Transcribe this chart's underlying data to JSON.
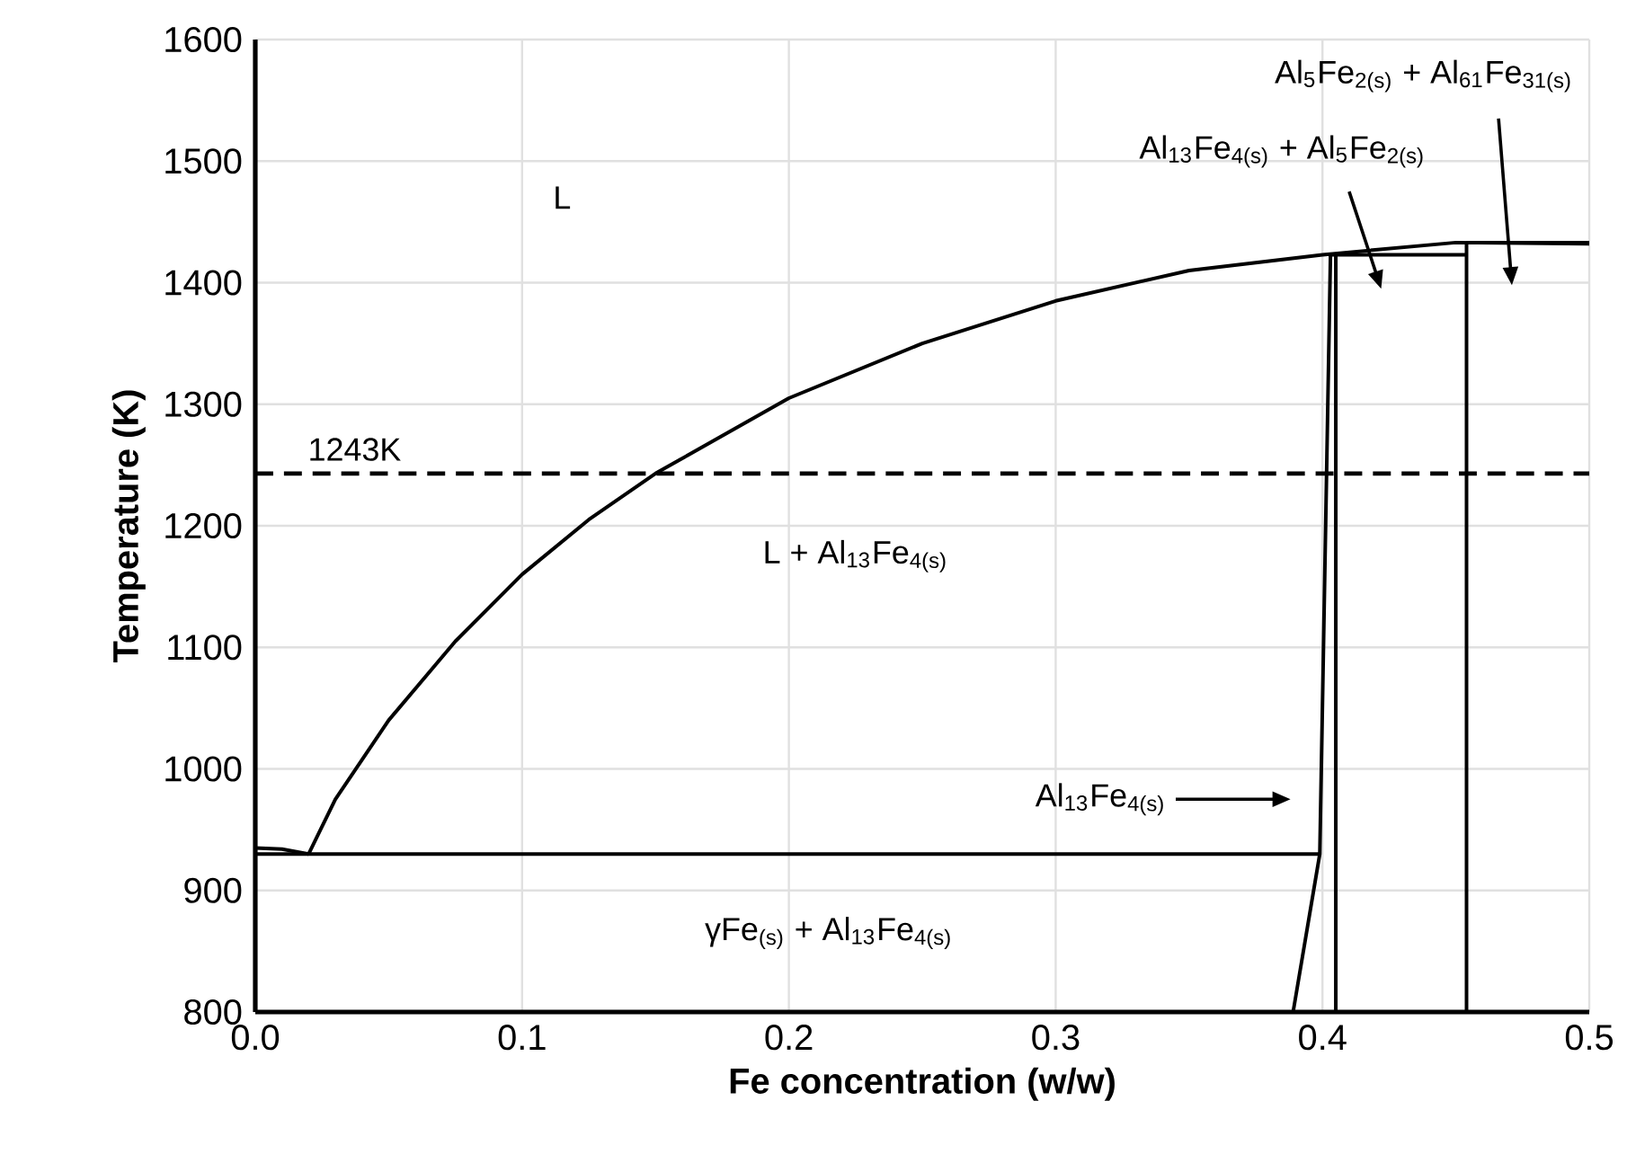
{
  "chart_data": {
    "type": "line",
    "xlabel": "Fe concentration (w/w)",
    "ylabel": "Temperature (K)",
    "xlim": [
      0,
      0.5
    ],
    "ylim": [
      800,
      1600
    ],
    "xticks": [
      {
        "value": 0,
        "label": "0.0"
      },
      0.1,
      0.2,
      0.3,
      0.4,
      0.5
    ],
    "yticks": [
      800,
      900,
      1000,
      1100,
      1200,
      1300,
      1400,
      1500,
      1600
    ],
    "grid": true,
    "marker": "none",
    "line_style": "solid",
    "series": [
      {
        "color": "#000000",
        "x": [
          0.02,
          0.03,
          0.05,
          0.075,
          0.1,
          0.125,
          0.15,
          0.2,
          0.25,
          0.3,
          0.35,
          0.4,
          0.45,
          0.5
        ],
        "values": [
          930,
          975,
          1040,
          1105,
          1160,
          1205,
          1243,
          1305,
          1350,
          1385,
          1410,
          1423,
          1433,
          1432
        ]
      },
      {
        "color": "#000000",
        "x": [
          0,
          0.01,
          0.02
        ],
        "values": [
          935,
          934,
          930
        ]
      },
      {
        "color": "#000000",
        "x": [
          0,
          0.399
        ],
        "values": [
          930,
          930
        ]
      },
      {
        "color": "#000000",
        "x": [
          0.389,
          0.399,
          0.403
        ],
        "values": [
          800,
          930,
          1423
        ]
      },
      {
        "color": "#000000",
        "x": [
          0.405,
          0.405
        ],
        "values": [
          800,
          1423
        ]
      },
      {
        "color": "#000000",
        "x": [
          0.403,
          0.454
        ],
        "values": [
          1423,
          1423
        ]
      },
      {
        "color": "#000000",
        "x": [
          0.454,
          0.454
        ],
        "values": [
          800,
          1433
        ]
      },
      {
        "color": "#000000",
        "x": [
          0.454,
          0.5
        ],
        "values": [
          1433,
          1433
        ]
      }
    ],
    "ref_lines": [
      {
        "axis": "y",
        "value": 1243,
        "label": "1243K",
        "line_style": "dashed",
        "color": "#000000"
      }
    ],
    "annotations": [
      "L",
      "L + Al$_{13}$Fe$_{4(s)}$",
      "γFe$_{(s)}$ + Al$_{13}$Fe$_{4(s)}$",
      "Al$_{13}$Fe$_{4(s)}$",
      "Al$_{13}$Fe$_{4(s)}$ + Al$_{5}$Fe$_{2(s)}$",
      "Al$_{5}$Fe$_{2(s)}$ + Al$_{61}$Fe$_{31(s)}$"
    ]
  }
}
